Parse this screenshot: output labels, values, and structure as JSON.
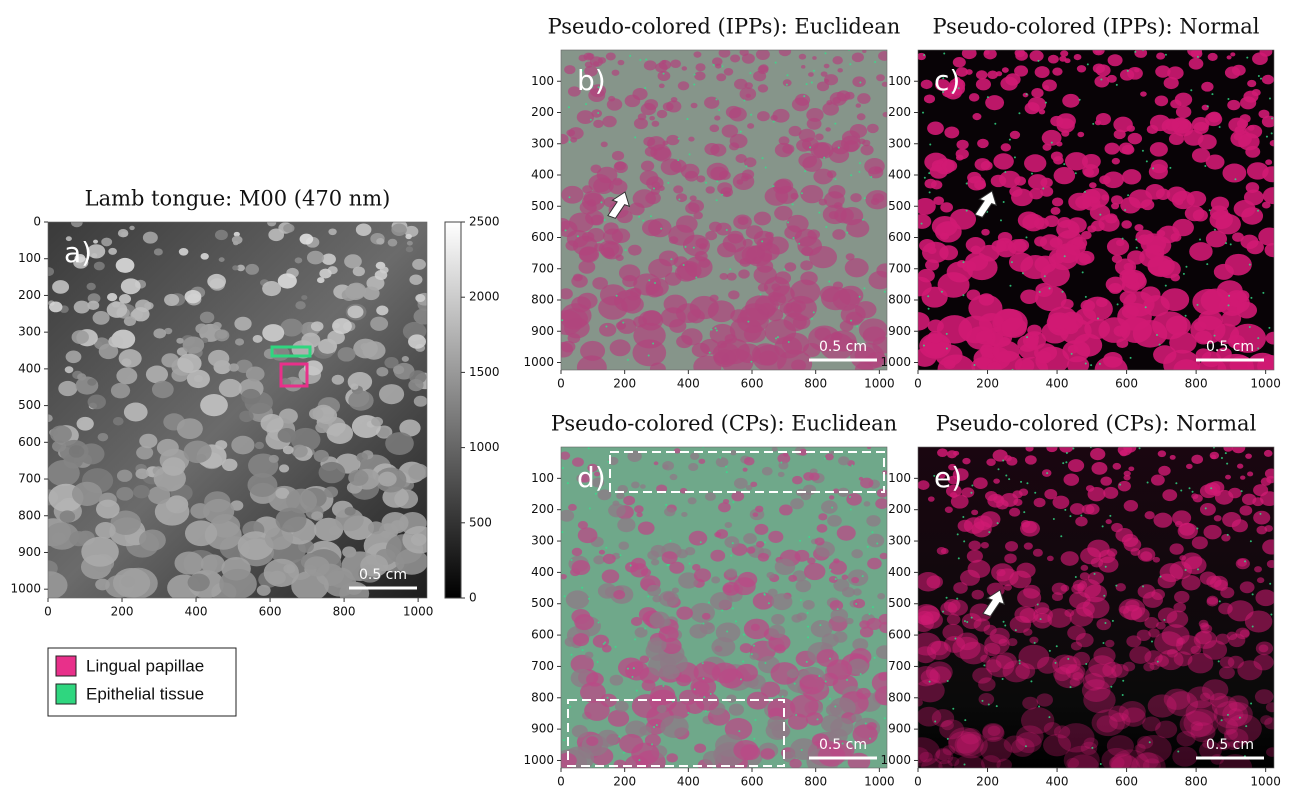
{
  "chart_data": [
    {
      "type": "image",
      "title": "Lamb tongue: M00 (470 nm)",
      "panel_label": "a)",
      "scale_bar": "0.5 cm",
      "xlim": [
        0,
        1024
      ],
      "ylim": [
        0,
        1024
      ],
      "xticks": [
        0,
        200,
        400,
        600,
        800,
        1000
      ],
      "yticks": [
        0,
        100,
        200,
        300,
        400,
        500,
        600,
        700,
        800,
        900,
        1000
      ],
      "colorbar": {
        "clim": [
          0,
          2500
        ],
        "ticks": [
          0,
          500,
          1000,
          1500,
          2000,
          2500
        ]
      },
      "legend": [
        {
          "name": "Lingual papillae",
          "color": "#e8308a"
        },
        {
          "name": "Epithelial tissue",
          "color": "#2fd67f"
        }
      ]
    },
    {
      "type": "image",
      "title": "Pseudo-colored (IPPs): Euclidean",
      "panel_label": "b)",
      "scale_bar": "0.5 cm",
      "xlim": [
        0,
        1024
      ],
      "ylim": [
        0,
        1024
      ],
      "xticks": [
        0,
        200,
        400,
        600,
        800,
        1000
      ],
      "yticks": [
        100,
        200,
        300,
        400,
        500,
        600,
        700,
        800,
        900,
        1000
      ]
    },
    {
      "type": "image",
      "title": "Pseudo-colored (IPPs): Normal",
      "panel_label": "c)",
      "scale_bar": "0.5 cm",
      "xlim": [
        0,
        1024
      ],
      "ylim": [
        0,
        1024
      ],
      "xticks": [
        0,
        200,
        400,
        600,
        800,
        1000
      ],
      "yticks": [
        100,
        200,
        300,
        400,
        500,
        600,
        700,
        800,
        900,
        1000
      ]
    },
    {
      "type": "image",
      "title": "Pseudo-colored (CPs): Euclidean",
      "panel_label": "d)",
      "scale_bar": "0.5 cm",
      "xlim": [
        0,
        1024
      ],
      "ylim": [
        0,
        1024
      ],
      "xticks": [
        0,
        200,
        400,
        600,
        800,
        1000
      ],
      "yticks": [
        100,
        200,
        300,
        400,
        500,
        600,
        700,
        800,
        900,
        1000
      ]
    },
    {
      "type": "image",
      "title": "Pseudo-colored (CPs): Normal",
      "panel_label": "e)",
      "scale_bar": "0.5 cm",
      "xlim": [
        0,
        1024
      ],
      "ylim": [
        0,
        1024
      ],
      "xticks": [
        0,
        200,
        400,
        600,
        800,
        1000
      ],
      "yticks": [
        100,
        200,
        300,
        400,
        500,
        600,
        700,
        800,
        900,
        1000
      ]
    }
  ]
}
